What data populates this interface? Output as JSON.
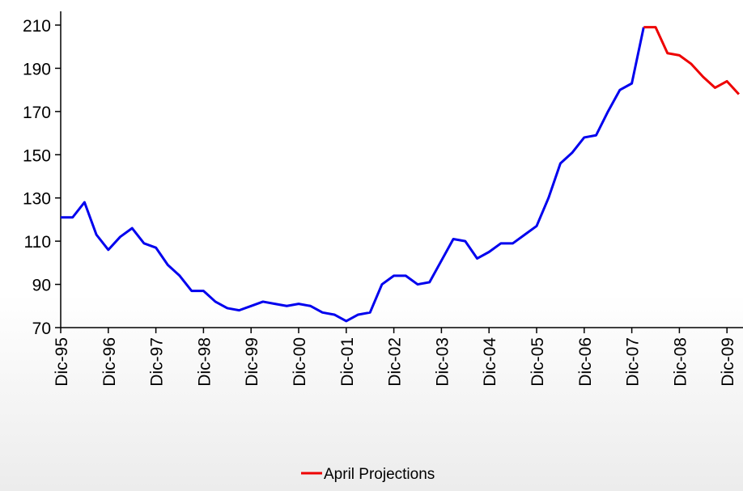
{
  "chart_data": {
    "type": "line",
    "categories": [
      "Dic-95",
      null,
      null,
      null,
      "Dic-96",
      null,
      null,
      null,
      "Dic-97",
      null,
      null,
      null,
      "Dic-98",
      null,
      null,
      null,
      "Dic-99",
      null,
      null,
      null,
      "Dic-00",
      null,
      null,
      null,
      "Dic-01",
      null,
      null,
      null,
      "Dic-02",
      null,
      null,
      null,
      "Dic-03",
      null,
      null,
      null,
      "Dic-04",
      null,
      null,
      null,
      "Dic-05",
      null,
      null,
      null,
      "Dic-06",
      null,
      null,
      null,
      "Dic-07",
      null,
      null,
      null,
      "Dic-08",
      null,
      null,
      null,
      "Dic-09",
      null
    ],
    "series": [
      {
        "color": "#0000ee",
        "values": [
          121,
          121,
          128,
          113,
          106,
          112,
          116,
          109,
          107,
          99,
          94,
          87,
          87,
          82,
          79,
          78,
          80,
          82,
          81,
          80,
          81,
          80,
          77,
          76,
          73,
          76,
          77,
          90,
          94,
          94,
          90,
          91,
          101,
          111,
          110,
          102,
          105,
          109,
          109,
          113,
          117,
          130,
          146,
          151,
          158,
          159,
          170,
          180,
          183,
          209,
          null,
          null,
          null,
          null,
          null,
          null,
          null,
          null
        ]
      },
      {
        "name": "April Projections",
        "color": "#ee0000",
        "values": [
          null,
          null,
          null,
          null,
          null,
          null,
          null,
          null,
          null,
          null,
          null,
          null,
          null,
          null,
          null,
          null,
          null,
          null,
          null,
          null,
          null,
          null,
          null,
          null,
          null,
          null,
          null,
          null,
          null,
          null,
          null,
          null,
          null,
          null,
          null,
          null,
          null,
          null,
          null,
          null,
          null,
          null,
          null,
          null,
          null,
          null,
          null,
          null,
          null,
          209,
          209,
          197,
          196,
          192,
          186,
          181,
          184,
          178
        ]
      }
    ],
    "ylim": [
      70,
      210
    ],
    "yticks": [
      70,
      90,
      110,
      130,
      150,
      170,
      190,
      210
    ],
    "grid": false,
    "legend": "bottom"
  }
}
